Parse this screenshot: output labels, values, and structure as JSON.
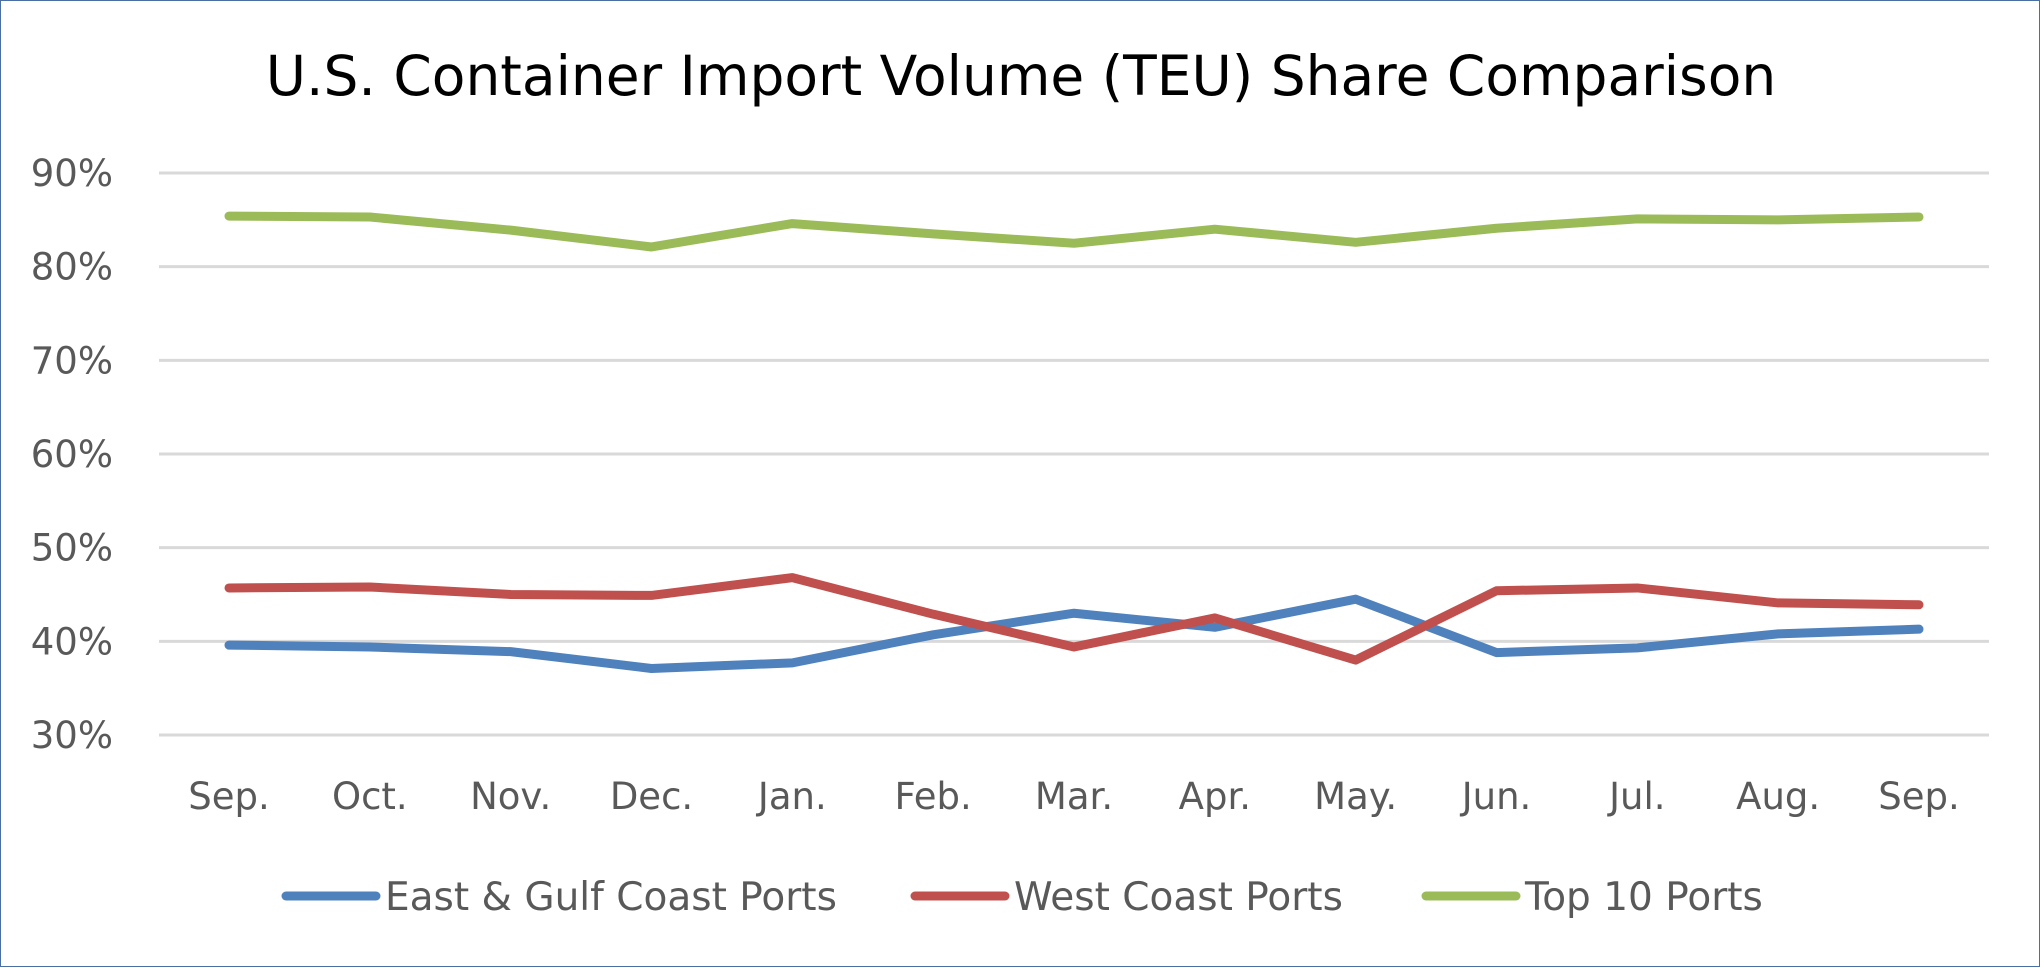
{
  "chart_data": {
    "type": "line",
    "title": "U.S. Container Import Volume (TEU) Share Comparison",
    "xlabel": "",
    "ylabel": "",
    "categories": [
      "Sep.",
      "Oct.",
      "Nov.",
      "Dec.",
      "Jan.",
      "Feb.",
      "Mar.",
      "Apr.",
      "May.",
      "Jun.",
      "Jul.",
      "Aug.",
      "Sep."
    ],
    "ylim": [
      30,
      90
    ],
    "yticks": [
      30,
      40,
      50,
      60,
      70,
      80,
      90
    ],
    "ytick_labels": [
      "30%",
      "40%",
      "50%",
      "60%",
      "70%",
      "80%",
      "90%"
    ],
    "grid": "horizontal",
    "legend": "bottom",
    "series": [
      {
        "name": "East & Gulf Coast Ports",
        "color": "#4f81bd",
        "values": [
          39.6,
          39.4,
          38.9,
          37.1,
          37.7,
          40.7,
          43.0,
          41.5,
          44.5,
          38.8,
          39.3,
          40.8,
          41.3
        ]
      },
      {
        "name": "West Coast Ports",
        "color": "#c0504d",
        "values": [
          45.7,
          45.8,
          45.0,
          44.9,
          46.8,
          42.9,
          39.4,
          42.5,
          38.0,
          45.4,
          45.7,
          44.1,
          43.9
        ]
      },
      {
        "name": "Top 10 Ports",
        "color": "#9bbb59",
        "values": [
          85.4,
          85.3,
          83.9,
          82.1,
          84.6,
          83.5,
          82.5,
          84.0,
          82.6,
          84.1,
          85.1,
          85.0,
          85.3
        ]
      }
    ]
  }
}
